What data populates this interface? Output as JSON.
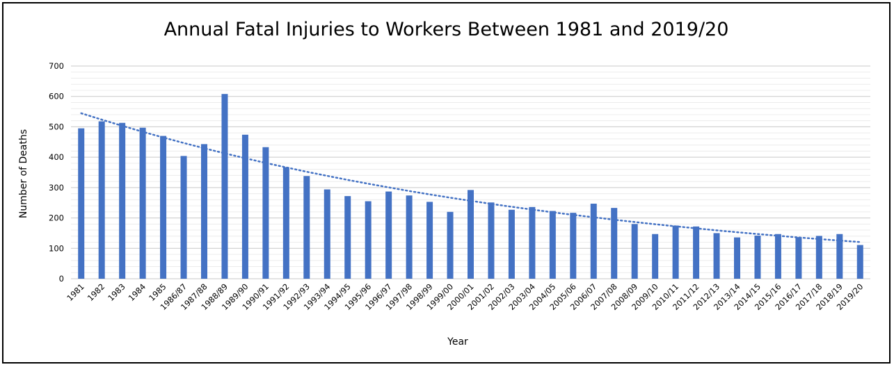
{
  "chart_data": {
    "type": "bar",
    "title": "Annual Fatal Injuries to Workers Between 1981 and 2019/20",
    "xlabel": "Year",
    "ylabel": "Number of Deaths",
    "ylim": [
      0,
      700
    ],
    "yticks": [
      "0",
      "100",
      "200",
      "300",
      "400",
      "500",
      "600",
      "700"
    ],
    "grid": true,
    "trendline": "dotted",
    "bar_color": "#4472C4",
    "trend_color": "#4472C4",
    "categories": [
      "1981",
      "1982",
      "1983",
      "1984",
      "1985",
      "1986/87",
      "1987/88",
      "1988/89",
      "1989/90",
      "1990/91",
      "1991/92",
      "1992/93",
      "1993/94",
      "1994/95",
      "1995/96",
      "1996/97",
      "1997/98",
      "1998/99",
      "1999/00",
      "2000/01",
      "2001/02",
      "2002/03",
      "2003/04",
      "2004/05",
      "2005/06",
      "2006/07",
      "2007/08",
      "2008/09",
      "2009/10",
      "2010/11",
      "2011/12",
      "2012/13",
      "2013/14",
      "2014/15",
      "2015/16",
      "2016/17",
      "2017/18",
      "2018/19",
      "2019/20"
    ],
    "values": [
      495,
      518,
      513,
      497,
      470,
      404,
      443,
      608,
      474,
      433,
      367,
      338,
      294,
      272,
      255,
      287,
      274,
      253,
      220,
      292,
      251,
      227,
      236,
      223,
      217,
      247,
      233,
      180,
      147,
      175,
      172,
      150,
      136,
      142,
      147,
      137,
      141,
      147,
      111
    ]
  }
}
